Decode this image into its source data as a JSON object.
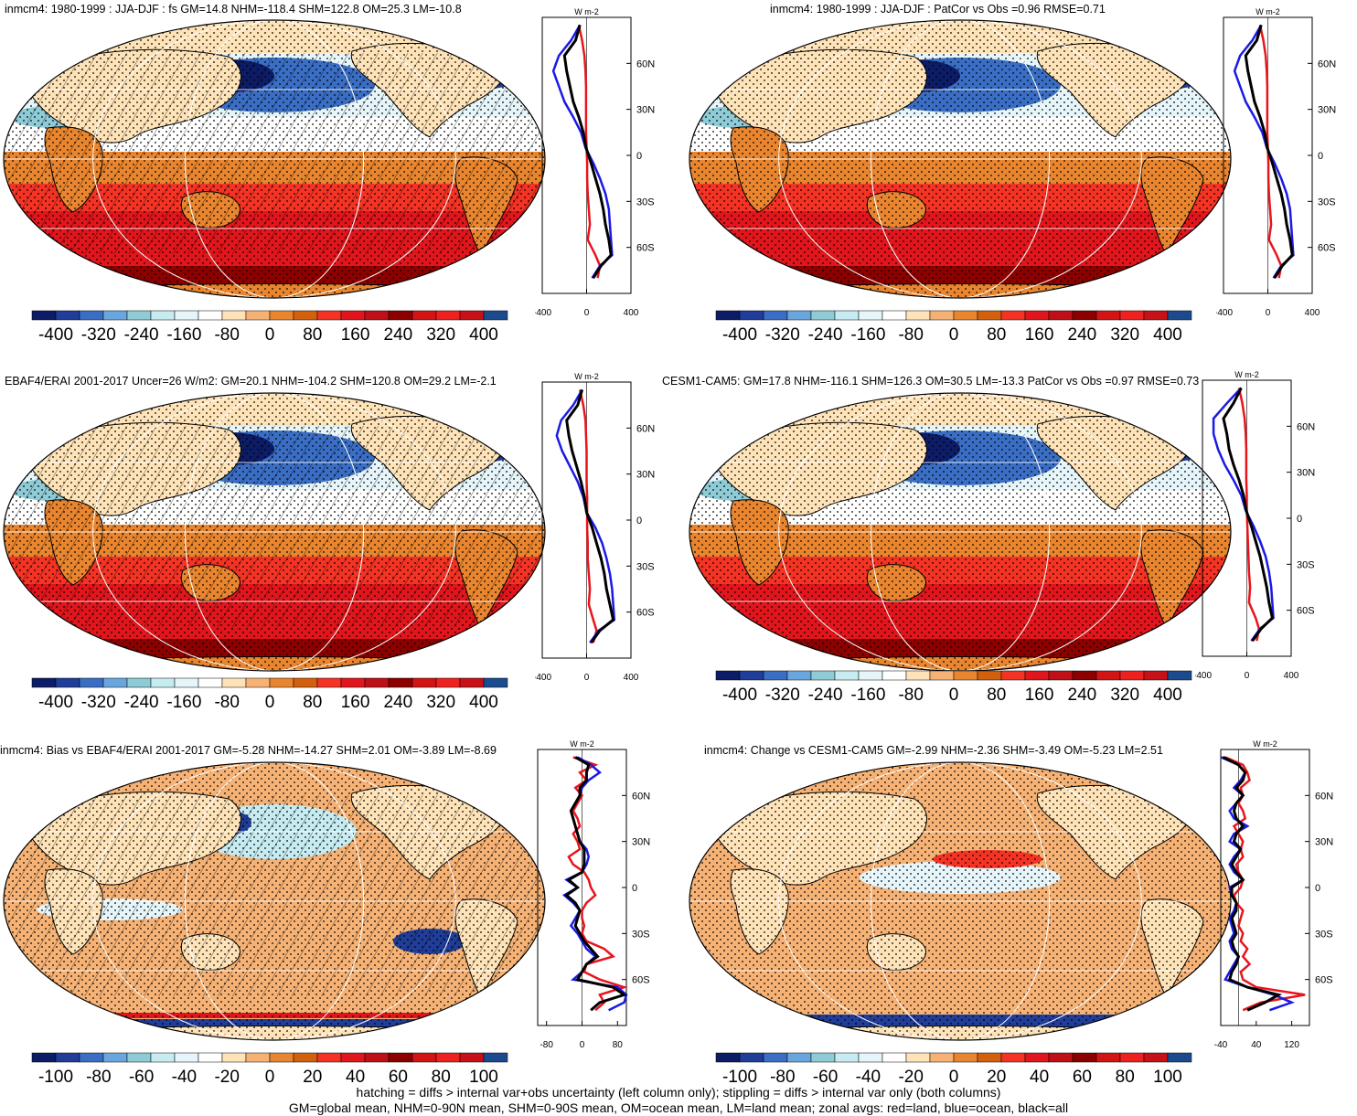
{
  "footer": {
    "line1": "hatching = diffs > internal var+obs uncertainty (left column only); stippling = diffs > internal var only (both columns)",
    "line2": "GM=global mean, NHM=0-90N mean, SHM=0-90S mean, OM=ocean mean, LM=land mean; zonal avgs: red=land, blue=ocean, black=all"
  },
  "colors": {
    "land_line": "#e8141c",
    "ocean_line": "#1a1ae6",
    "all_line": "#000000",
    "map_palette": [
      "#0d1c66",
      "#1f3d99",
      "#3a6ec4",
      "#6aa6de",
      "#8ecbd6",
      "#c6ecf2",
      "#e6f5f9",
      "#ffffff",
      "#ffe3b8",
      "#f6b275",
      "#e8852e",
      "#d3600d",
      "#f43324",
      "#e0161c",
      "#bf1018",
      "#8c0000",
      "#d21414",
      "#ee2121",
      "#c61117",
      "#1c4a8f"
    ]
  },
  "chart_data": [
    {
      "type": "heatmap",
      "title": "inmcm4: 1980-1999 : JJA-DJF : fs GM=14.8 NHM=-118.4 SHM=122.8 OM=25.3 LM=-10.8",
      "map_style": "full",
      "colorbar_ticks": [
        "-400",
        "-320",
        "-240",
        "-160",
        "-80",
        "0",
        "80",
        "160",
        "240",
        "320",
        "400"
      ],
      "zonal": {
        "unit": "W m-2",
        "xlim": [
          -400,
          400
        ],
        "xticks": [
          "-400",
          "0",
          "400"
        ],
        "yticks": [
          "60N",
          "30N",
          "0",
          "30S",
          "60S"
        ],
        "lat": [
          85,
          75,
          65,
          55,
          45,
          35,
          25,
          15,
          5,
          -5,
          -15,
          -25,
          -35,
          -45,
          -55,
          -65,
          -72,
          -80
        ],
        "series": [
          {
            "label": "red=land",
            "values": [
              -70,
              -40,
              -20,
              -10,
              -5,
              -5,
              -5,
              -5,
              0,
              5,
              5,
              10,
              20,
              30,
              10,
              80,
              120,
              100
            ]
          },
          {
            "label": "blue=ocean",
            "values": [
              -60,
              -140,
              -250,
              -300,
              -250,
              -200,
              -120,
              -50,
              -10,
              60,
              120,
              170,
              200,
              210,
              220,
              230,
              120,
              50
            ]
          },
          {
            "label": "black=all",
            "values": [
              -60,
              -100,
              -200,
              -180,
              -150,
              -120,
              -70,
              -30,
              -5,
              40,
              80,
              120,
              150,
              170,
              200,
              220,
              130,
              60
            ]
          }
        ]
      }
    },
    {
      "type": "heatmap",
      "title": "inmcm4: 1980-1999 : JJA-DJF : PatCor vs Obs =0.96 RMSE=0.71",
      "map_style": "full",
      "colorbar_ticks": [
        "-400",
        "-320",
        "-240",
        "-160",
        "-80",
        "0",
        "80",
        "160",
        "240",
        "320",
        "400"
      ],
      "zonal": {
        "unit": "W m-2",
        "xlim": [
          -400,
          400
        ],
        "xticks": [
          "-400",
          "0",
          "400"
        ],
        "yticks": [
          "60N",
          "30N",
          "0",
          "30S",
          "60S"
        ],
        "lat": [
          85,
          75,
          65,
          55,
          45,
          35,
          25,
          15,
          5,
          -5,
          -15,
          -25,
          -35,
          -45,
          -55,
          -65,
          -72,
          -80
        ],
        "series": [
          {
            "label": "red=land",
            "values": [
              -70,
              -40,
              -20,
              -10,
              -5,
              -5,
              -5,
              -5,
              0,
              5,
              5,
              10,
              20,
              30,
              10,
              80,
              120,
              100
            ]
          },
          {
            "label": "blue=ocean",
            "values": [
              -60,
              -140,
              -250,
              -300,
              -250,
              -200,
              -120,
              -50,
              -10,
              60,
              120,
              170,
              200,
              210,
              220,
              230,
              120,
              50
            ]
          },
          {
            "label": "black=all",
            "values": [
              -60,
              -100,
              -200,
              -180,
              -150,
              -120,
              -70,
              -30,
              -5,
              40,
              80,
              120,
              150,
              170,
              200,
              220,
              130,
              60
            ]
          }
        ]
      }
    },
    {
      "type": "heatmap",
      "title": "EBAF4/ERAI 2001-2017 Uncer=26 W/m2: GM=20.1 NHM=-104.2 SHM=120.8 OM=29.2 LM=-2.1",
      "map_style": "full",
      "colorbar_ticks": [
        "-400",
        "-320",
        "-240",
        "-160",
        "-80",
        "0",
        "80",
        "160",
        "240",
        "320",
        "400"
      ],
      "zonal": {
        "unit": "W m-2",
        "xlim": [
          -400,
          400
        ],
        "xticks": [
          "-400",
          "0",
          "400"
        ],
        "yticks": [
          "60N",
          "30N",
          "0",
          "30S",
          "60S"
        ],
        "lat": [
          85,
          75,
          65,
          55,
          45,
          35,
          25,
          15,
          5,
          -5,
          -15,
          -25,
          -35,
          -45,
          -55,
          -65,
          -72,
          -80
        ],
        "series": [
          {
            "label": "red=land",
            "values": [
              -60,
              -30,
              -10,
              -5,
              0,
              0,
              0,
              5,
              5,
              5,
              10,
              10,
              20,
              30,
              20,
              60,
              90,
              60
            ]
          },
          {
            "label": "blue=ocean",
            "values": [
              -40,
              -120,
              -230,
              -270,
              -220,
              -150,
              -80,
              -30,
              0,
              80,
              140,
              180,
              210,
              230,
              240,
              250,
              110,
              30
            ]
          },
          {
            "label": "black=all",
            "values": [
              -40,
              -80,
              -180,
              -160,
              -130,
              -90,
              -50,
              -20,
              0,
              50,
              90,
              130,
              160,
              180,
              210,
              240,
              120,
              40
            ]
          }
        ]
      }
    },
    {
      "type": "heatmap",
      "title": "CESM1-CAM5: GM=17.8 NHM=-116.1 SHM=126.3 OM=30.5 LM=-13.3 PatCor vs Obs =0.97 RMSE=0.73",
      "map_style": "full",
      "colorbar_ticks": [
        "-400",
        "-320",
        "-240",
        "-160",
        "-80",
        "0",
        "80",
        "160",
        "240",
        "320",
        "400"
      ],
      "zonal": {
        "unit": "W m-2",
        "xlim": [
          -400,
          400
        ],
        "xticks": [
          "-400",
          "0",
          "400"
        ],
        "yticks": [
          "60N",
          "30N",
          "0",
          "30S",
          "60S"
        ],
        "lat": [
          85,
          75,
          65,
          55,
          45,
          35,
          25,
          15,
          5,
          -5,
          -15,
          -25,
          -35,
          -45,
          -55,
          -65,
          -72,
          -80
        ],
        "series": [
          {
            "label": "red=land",
            "values": [
              -70,
              -40,
              -20,
              -10,
              -5,
              -5,
              -5,
              0,
              0,
              5,
              10,
              15,
              20,
              30,
              20,
              80,
              110,
              90
            ]
          },
          {
            "label": "blue=ocean",
            "values": [
              -50,
              -180,
              -300,
              -300,
              -260,
              -200,
              -120,
              -50,
              -10,
              60,
              120,
              170,
              200,
              220,
              230,
              240,
              120,
              40
            ]
          },
          {
            "label": "black=all",
            "values": [
              -50,
              -120,
              -210,
              -180,
              -160,
              -120,
              -70,
              -30,
              -5,
              40,
              80,
              120,
              150,
              180,
              200,
              230,
              130,
              50
            ]
          }
        ]
      }
    },
    {
      "type": "heatmap",
      "title": "inmcm4: Bias vs EBAF4/ERAI 2001-2017 GM=-5.28 NHM=-14.27 SHM=2.01 OM=-3.89 LM=-8.69",
      "map_style": "bias",
      "colorbar_ticks": [
        "-100",
        "-80",
        "-60",
        "-40",
        "-20",
        "0",
        "20",
        "40",
        "60",
        "80",
        "100"
      ],
      "zonal": {
        "unit": "W m-2",
        "xlim": [
          -100,
          100
        ],
        "xticks": [
          "-80",
          "0",
          "80"
        ],
        "yticks": [
          "60N",
          "30N",
          "0",
          "30S",
          "60S"
        ],
        "lat": [
          85,
          80,
          75,
          70,
          65,
          60,
          55,
          50,
          45,
          40,
          35,
          30,
          25,
          20,
          15,
          10,
          5,
          0,
          -5,
          -10,
          -15,
          -20,
          -25,
          -30,
          -35,
          -40,
          -45,
          -50,
          -55,
          -60,
          -65,
          -70,
          -75,
          -80
        ],
        "series": [
          {
            "label": "red=land",
            "values": [
              -20,
              30,
              -5,
              10,
              -15,
              0,
              -10,
              -20,
              -10,
              -5,
              -20,
              -10,
              -5,
              -30,
              -20,
              5,
              15,
              20,
              30,
              10,
              0,
              0,
              5,
              0,
              10,
              50,
              70,
              10,
              5,
              40,
              95,
              40,
              50,
              30
            ]
          },
          {
            "label": "blue=ocean",
            "values": [
              -10,
              20,
              40,
              15,
              0,
              -5,
              -15,
              -25,
              -20,
              -15,
              -10,
              -5,
              10,
              15,
              10,
              0,
              -35,
              -10,
              -40,
              -20,
              -5,
              -15,
              -25,
              -10,
              0,
              10,
              30,
              10,
              0,
              -20,
              80,
              100,
              95,
              60
            ]
          },
          {
            "label": "black=all",
            "values": [
              -15,
              15,
              10,
              10,
              -5,
              -5,
              -15,
              -25,
              -20,
              -15,
              -10,
              -5,
              5,
              5,
              5,
              0,
              -30,
              -10,
              -35,
              -15,
              -5,
              -10,
              -15,
              -5,
              5,
              20,
              35,
              10,
              0,
              -10,
              70,
              95,
              40,
              20
            ]
          }
        ]
      }
    },
    {
      "type": "heatmap",
      "title": "inmcm4: Change vs CESM1-CAM5 GM=-2.99 NHM=-2.36 SHM=-3.49 OM=-5.23 LM=2.51",
      "map_style": "change",
      "colorbar_ticks": [
        "-100",
        "-80",
        "-60",
        "-40",
        "-20",
        "0",
        "20",
        "40",
        "60",
        "80",
        "100"
      ],
      "zonal": {
        "unit": "W m-2",
        "xlim": [
          -40,
          160
        ],
        "xticks": [
          "-40",
          "40",
          "120"
        ],
        "yticks": [
          "60N",
          "30N",
          "0",
          "30S",
          "60S"
        ],
        "lat": [
          85,
          80,
          75,
          70,
          65,
          60,
          55,
          50,
          45,
          40,
          35,
          30,
          25,
          20,
          15,
          10,
          5,
          0,
          -5,
          -10,
          -15,
          -20,
          -25,
          -30,
          -35,
          -40,
          -45,
          -50,
          -55,
          -60,
          -65,
          -70,
          -75,
          -80
        ],
        "series": [
          {
            "label": "red=land",
            "values": [
              -30,
              10,
              20,
              25,
              5,
              10,
              0,
              10,
              15,
              -10,
              0,
              10,
              5,
              10,
              -5,
              0,
              10,
              5,
              -10,
              -5,
              10,
              5,
              0,
              10,
              5,
              20,
              10,
              25,
              5,
              10,
              40,
              150,
              50,
              10
            ]
          },
          {
            "label": "blue=ocean",
            "values": [
              -40,
              0,
              15,
              5,
              -10,
              10,
              -5,
              -20,
              -10,
              20,
              -10,
              -20,
              5,
              -10,
              -20,
              -10,
              10,
              -20,
              -15,
              -5,
              -10,
              -20,
              -15,
              -10,
              -20,
              -15,
              0,
              -10,
              -20,
              -30,
              20,
              80,
              120,
              70
            ]
          },
          {
            "label": "black=all",
            "values": [
              -35,
              0,
              15,
              10,
              -5,
              10,
              -5,
              -10,
              -5,
              10,
              -5,
              -10,
              5,
              -5,
              -15,
              -5,
              10,
              -15,
              -15,
              -5,
              -5,
              -15,
              -10,
              -5,
              -15,
              -10,
              0,
              -5,
              -15,
              -20,
              20,
              90,
              60,
              20
            ]
          }
        ]
      }
    }
  ]
}
